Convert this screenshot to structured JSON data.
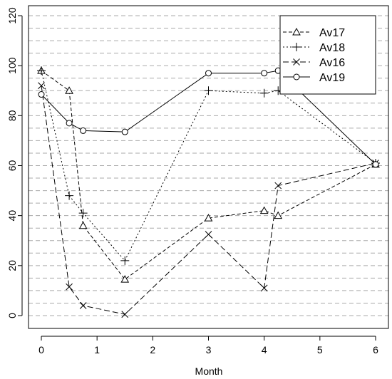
{
  "chart_data": {
    "type": "line",
    "title": "",
    "xlabel": "Month",
    "ylabel": "",
    "xlim": [
      -0.2,
      6.2
    ],
    "ylim": [
      -5,
      125
    ],
    "xticks": [
      0,
      1,
      2,
      3,
      4,
      5,
      6
    ],
    "yticks": [
      0,
      20,
      40,
      60,
      80,
      100,
      120
    ],
    "grid_y": [
      0,
      5,
      10,
      15,
      20,
      25,
      30,
      35,
      40,
      45,
      50,
      55,
      60,
      65,
      70,
      75,
      80,
      85,
      90,
      95,
      100,
      105,
      110,
      115,
      120
    ],
    "grid": "horizontal dashed lines every 5 units",
    "legend_position": "top-right",
    "series": [
      {
        "name": "Av17",
        "marker": "triangle",
        "dash": "5,3",
        "color": "#000000",
        "x": [
          0,
          0.5,
          0.75,
          1.5,
          3,
          4,
          4.25,
          6
        ],
        "y": [
          98,
          90,
          36,
          14.5,
          39,
          42,
          40,
          60.5
        ]
      },
      {
        "name": "Av18",
        "marker": "plus",
        "dash": "2,3",
        "color": "#000000",
        "x": [
          0,
          0.5,
          0.75,
          1.5,
          3,
          4,
          4.25,
          6
        ],
        "y": [
          98,
          48,
          41,
          22,
          90,
          89,
          90,
          61
        ]
      },
      {
        "name": "Av16",
        "marker": "cross",
        "dash": "8,4",
        "color": "#000000",
        "x": [
          0,
          0.5,
          0.75,
          1.5,
          3,
          4,
          4.25,
          6
        ],
        "y": [
          92,
          11.5,
          4,
          0.5,
          32.5,
          11,
          52,
          61
        ]
      },
      {
        "name": "Av19",
        "marker": "circle",
        "dash": "",
        "color": "#000000",
        "x": [
          0,
          0.5,
          0.75,
          1.5,
          3,
          4,
          4.25,
          6
        ],
        "y": [
          88.5,
          77,
          74,
          73.5,
          97,
          97,
          98,
          60.5
        ]
      }
    ]
  }
}
